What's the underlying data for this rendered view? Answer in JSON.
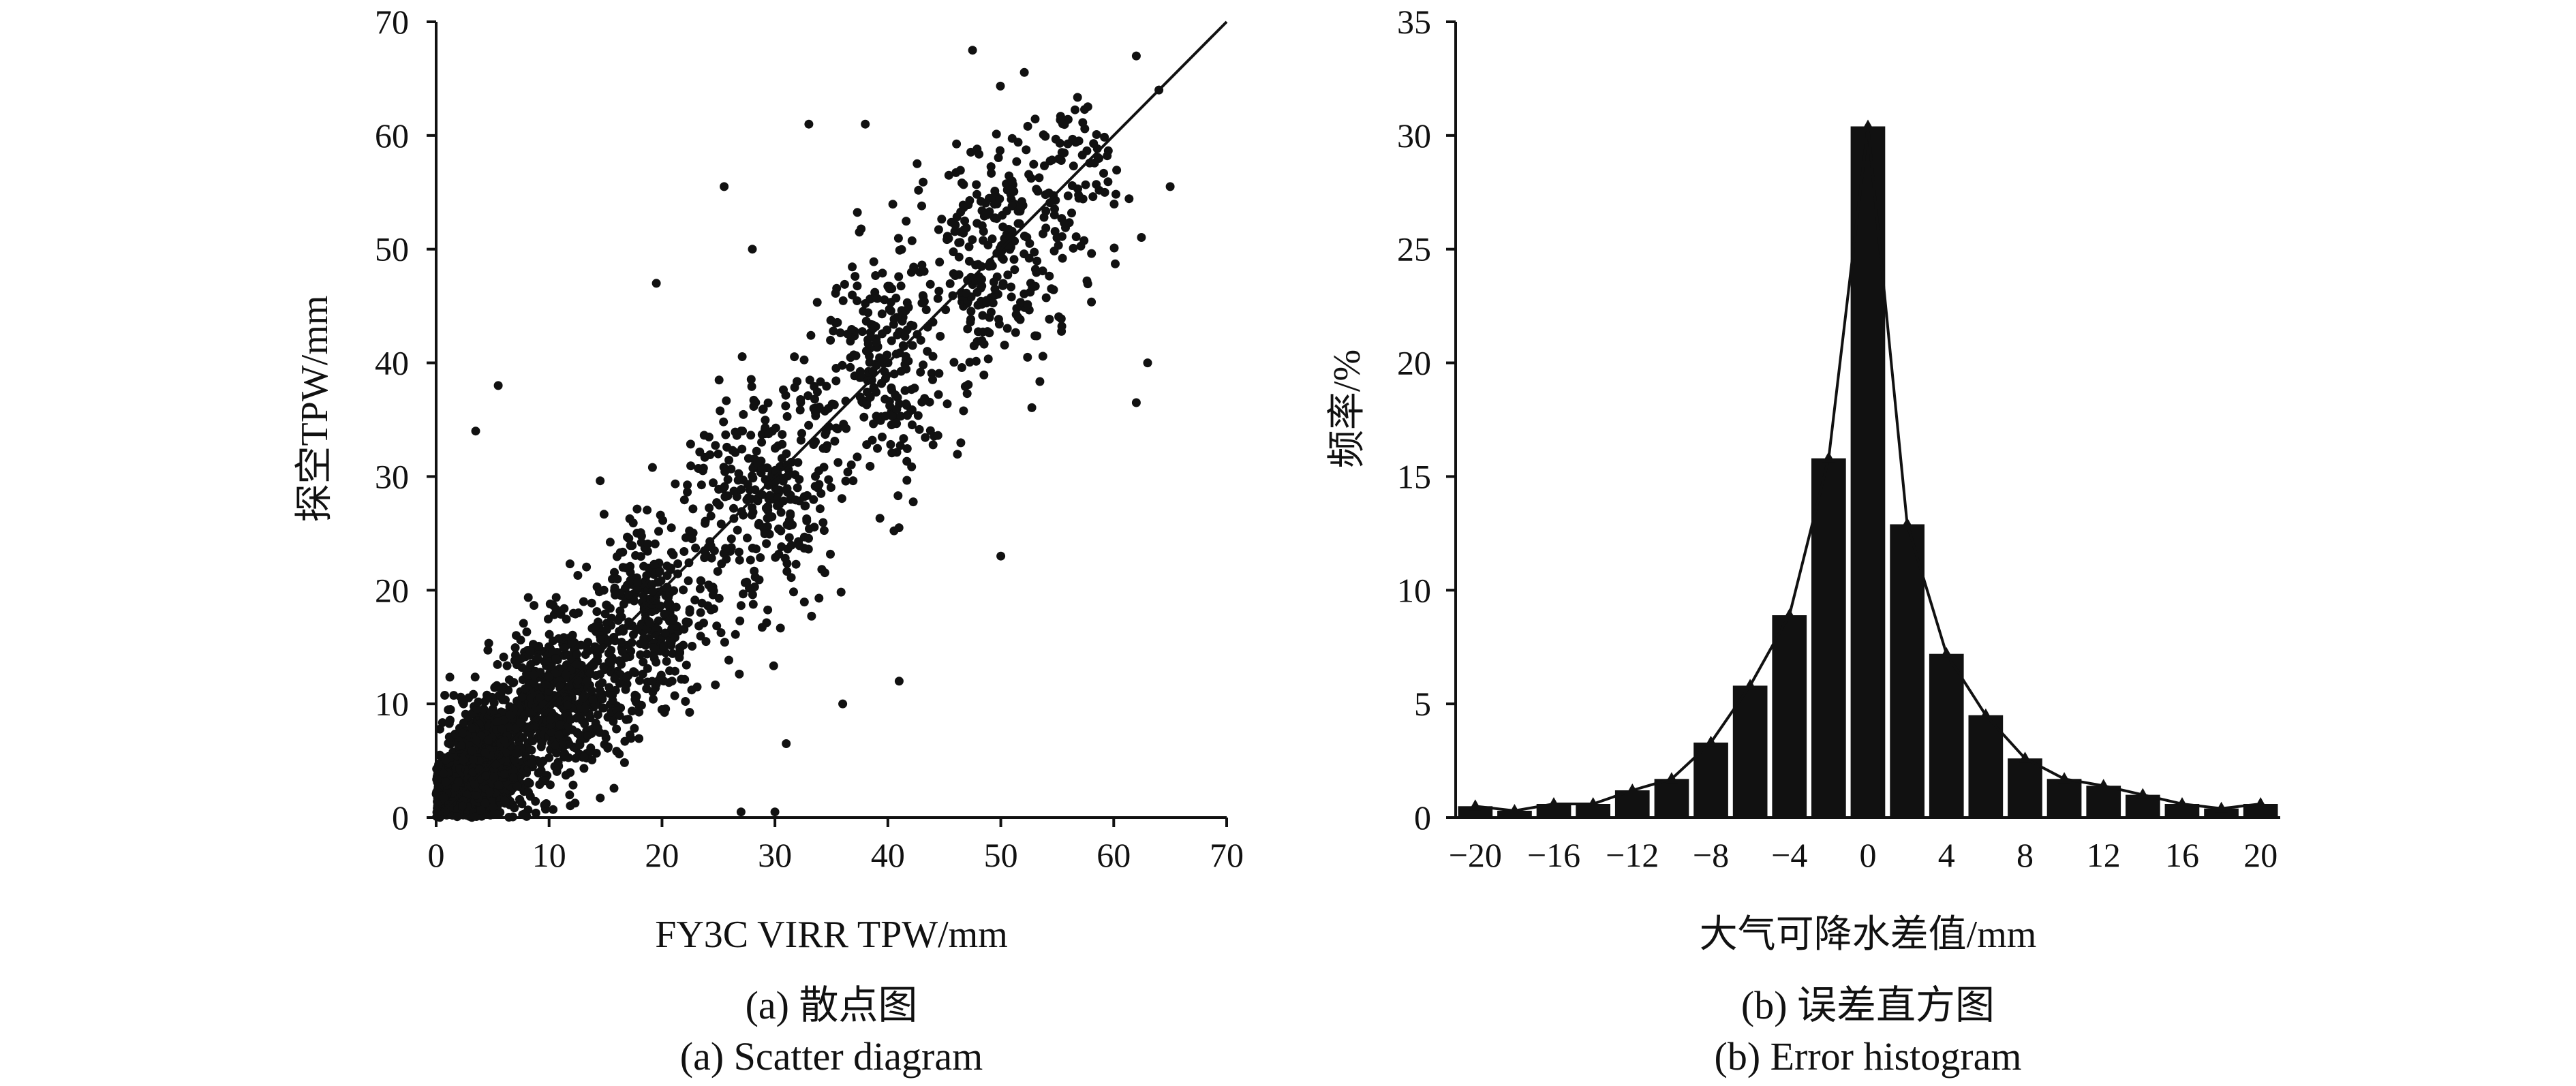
{
  "chart_data": [
    {
      "type": "scatter",
      "xlabel": "FY3C VIRR TPW/mm",
      "ylabel": "探空TPW/mm",
      "xlim": [
        0,
        70
      ],
      "ylim": [
        0,
        70
      ],
      "xticks": [
        "0",
        "10",
        "20",
        "30",
        "40",
        "50",
        "60",
        "70"
      ],
      "yticks": [
        "0",
        "10",
        "20",
        "30",
        "40",
        "50",
        "60",
        "70"
      ],
      "reference_line": {
        "from": [
          0,
          0
        ],
        "to": [
          70,
          70
        ]
      },
      "point_color": "#111111",
      "density_clusters": [
        {
          "x": 3,
          "y": 4,
          "spread": 3,
          "count": 650
        },
        {
          "x": 8,
          "y": 8,
          "spread": 4.5,
          "count": 650
        },
        {
          "x": 15,
          "y": 14,
          "spread": 5,
          "count": 450
        },
        {
          "x": 25,
          "y": 24,
          "spread": 6,
          "count": 300
        },
        {
          "x": 35,
          "y": 35,
          "spread": 6.5,
          "count": 250
        },
        {
          "x": 45,
          "y": 45,
          "spread": 7,
          "count": 250
        },
        {
          "x": 53,
          "y": 53,
          "spread": 6,
          "count": 200
        }
      ],
      "notable_points": [
        [
          3.5,
          34
        ],
        [
          5.5,
          38
        ],
        [
          19.5,
          47
        ],
        [
          28,
          50
        ],
        [
          25.5,
          55.5
        ],
        [
          33,
          61
        ],
        [
          38,
          61
        ],
        [
          47.5,
          67.5
        ],
        [
          62,
          67
        ],
        [
          64,
          64
        ],
        [
          65,
          55.5
        ],
        [
          62,
          36.5
        ],
        [
          63,
          40
        ],
        [
          27,
          0.5
        ],
        [
          30,
          0.5
        ],
        [
          50,
          23
        ],
        [
          41,
          12
        ],
        [
          31,
          6.5
        ],
        [
          36,
          10
        ]
      ],
      "caption_zh": "(a) 散点图",
      "caption_en": "(a) Scatter diagram"
    },
    {
      "type": "bar",
      "xlabel": "大气可降水差值/mm",
      "ylabel": "频率/%",
      "xlim": [
        -21,
        21
      ],
      "ylim": [
        0,
        35
      ],
      "xticks": [
        "−20",
        "−16",
        "−12",
        "−8",
        "−4",
        "0",
        "4",
        "8",
        "12",
        "16",
        "20"
      ],
      "yticks": [
        "0",
        "5",
        "10",
        "15",
        "20",
        "25",
        "30",
        "35"
      ],
      "categories": [
        -20,
        -18,
        -16,
        -14,
        -12,
        -10,
        -8,
        -6,
        -4,
        -2,
        0,
        2,
        4,
        6,
        8,
        10,
        12,
        14,
        16,
        18,
        20
      ],
      "values": [
        0.5,
        0.3,
        0.6,
        0.6,
        1.2,
        1.7,
        3.3,
        5.8,
        8.9,
        15.8,
        30.4,
        12.9,
        7.2,
        4.5,
        2.6,
        1.7,
        1.4,
        1.0,
        0.6,
        0.4,
        0.6
      ],
      "bar_color": "#111111",
      "overlay_line": true,
      "caption_zh": "(b) 误差直方图",
      "caption_en": "(b) Error histogram"
    }
  ]
}
